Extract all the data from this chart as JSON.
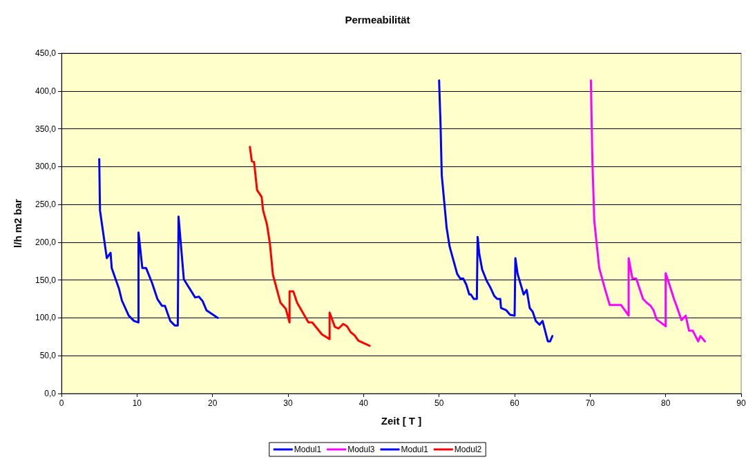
{
  "chart_data": {
    "type": "line",
    "title": "Permeabilität",
    "xlabel": "Zeit [ T ]",
    "ylabel": "l/h m2 bar",
    "xlim": [
      0,
      90
    ],
    "xticks": [
      0,
      10,
      20,
      30,
      40,
      50,
      60,
      70,
      80,
      90
    ],
    "ylim": [
      0,
      450
    ],
    "yticks": [
      {
        "value": 0,
        "label": "0,0"
      },
      {
        "value": 50,
        "label": "50,0"
      },
      {
        "value": 100,
        "label": "100,0"
      },
      {
        "value": 150,
        "label": "150,0"
      },
      {
        "value": 200,
        "label": "200,0"
      },
      {
        "value": 250,
        "label": "250,0"
      },
      {
        "value": 300,
        "label": "300,0"
      },
      {
        "value": 350,
        "label": "350,0"
      },
      {
        "value": 400,
        "label": "400,0"
      },
      {
        "value": 450,
        "label": "450,0"
      }
    ],
    "grid": "y",
    "legend": "bottom",
    "marker": "none",
    "line_style": "solid",
    "series": [
      {
        "name": "Modul1",
        "color": "#0000ff",
        "x": [
          5.0,
          5.1,
          5.5,
          6.0,
          6.5,
          6.65,
          7.6,
          8.0,
          8.9,
          9.6,
          10.2,
          10.2,
          10.7,
          11.2,
          12.0,
          12.7,
          13.3,
          13.7,
          14.4,
          15.0,
          15.4,
          15.5,
          16.2,
          17.7,
          18.2,
          18.7,
          19.2,
          20.7
        ],
        "values": [
          310,
          242,
          214,
          179,
          186,
          166,
          139,
          123,
          103,
          96,
          94,
          213,
          166,
          166,
          146,
          125,
          116,
          116,
          96,
          90,
          90,
          234,
          151,
          127,
          128,
          122,
          110,
          100
        ]
      },
      {
        "name": "Modul3",
        "color": "#ff00ff",
        "x": [
          70.1,
          70.3,
          70.55,
          71.2,
          72.0,
          72.6,
          74.1,
          75.1,
          75.1,
          75.6,
          76.1,
          77.0,
          77.5,
          78.0,
          78.4,
          78.8,
          79.2,
          80.0,
          80.0,
          80.5,
          81.1,
          81.4,
          82.1,
          82.65,
          83.1,
          83.6,
          84.3,
          84.6,
          85.2
        ],
        "values": [
          414,
          307,
          228,
          166,
          137,
          117,
          117,
          103,
          179,
          152,
          152,
          125,
          120,
          116,
          110,
          98,
          95,
          89,
          159,
          144,
          125,
          117,
          97,
          103,
          83,
          83,
          69,
          76,
          69
        ]
      },
      {
        "name": "Modul1",
        "color": "#0000ff",
        "x": [
          50.0,
          50.2,
          50.35,
          51.0,
          51.4,
          52.4,
          52.8,
          53.2,
          53.6,
          54.0,
          54.2,
          54.6,
          55.0,
          55.1,
          55.3,
          55.7,
          56.3,
          56.8,
          57.3,
          57.7,
          58.1,
          58.2,
          58.9,
          59.4,
          60.0,
          60.1,
          60.4,
          61.2,
          61.6,
          62.0,
          62.4,
          62.8,
          63.3,
          63.7,
          64.4,
          64.7,
          65.0
        ],
        "values": [
          414,
          353,
          289,
          219,
          194,
          158,
          152,
          152,
          144,
          131,
          131,
          125,
          125,
          207,
          186,
          164,
          149,
          140,
          129,
          125,
          125,
          113,
          110,
          104,
          103,
          179,
          158,
          131,
          137,
          113,
          108,
          96,
          91,
          96,
          69,
          69,
          76
        ]
      },
      {
        "name": "Modul2",
        "color": "#ff0000",
        "x": [
          24.95,
          25.2,
          25.5,
          25.9,
          26.5,
          26.7,
          27.2,
          27.6,
          28.0,
          29.0,
          29.7,
          30.2,
          30.2,
          30.7,
          31.2,
          32.7,
          33.2,
          34.5,
          35.5,
          35.5,
          36.2,
          36.7,
          37.3,
          37.8,
          38.3,
          38.8,
          39.3,
          40.8
        ],
        "values": [
          326,
          307,
          306,
          269,
          260,
          242,
          224,
          198,
          157,
          120,
          112,
          94,
          135,
          135,
          120,
          94,
          94,
          78,
          72,
          107,
          88,
          86,
          92,
          89,
          81,
          77,
          70,
          63
        ]
      }
    ]
  }
}
